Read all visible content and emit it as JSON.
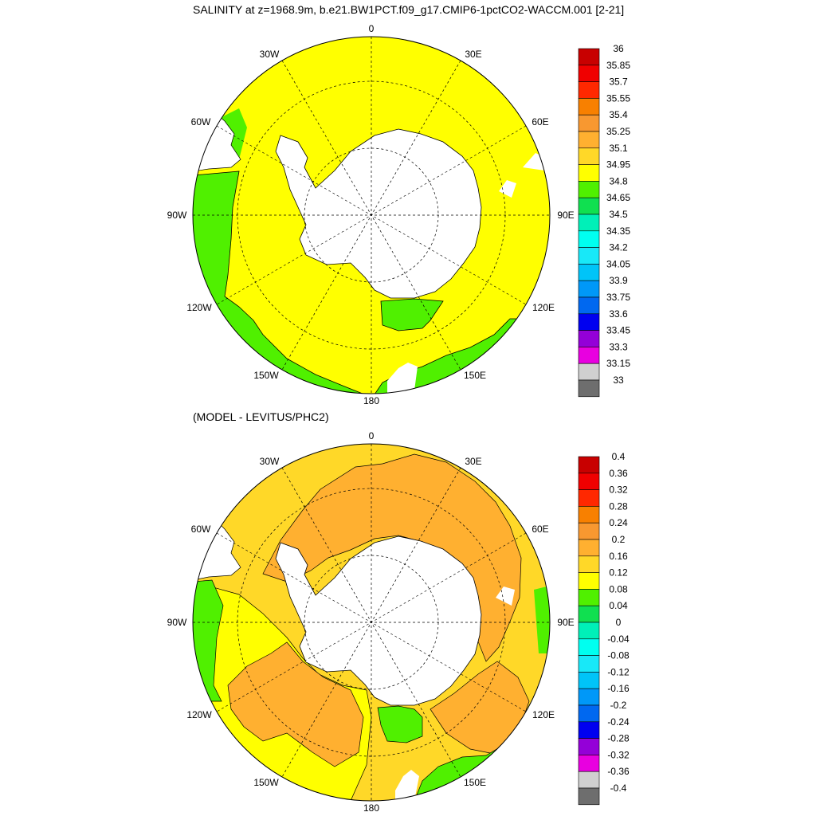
{
  "titles": {
    "top": "SALINITY at z=1968.9m, b.e21.BW1PCT.f09_g17.CMIP6-1pctCO2-WACCM.001 [2-21]",
    "bottom": "(MODEL - LEVITUS/PHC2)"
  },
  "map_labels": [
    "0",
    "30E",
    "60E",
    "90E",
    "120E",
    "150E",
    "180",
    "150W",
    "120W",
    "90W",
    "60W",
    "30W"
  ],
  "colors": {
    "palette": [
      "#6e6e6e",
      "#d0d0d0",
      "#e800e0",
      "#9400d8",
      "#0000f0",
      "#0068f0",
      "#0098f8",
      "#00c4f8",
      "#18e8f8",
      "#00fff0",
      "#00f0b8",
      "#10e050",
      "#50f000",
      "#ffff00",
      "#ffd828",
      "#ffb030",
      "#f89830",
      "#f88000",
      "#ff2800",
      "#f00000",
      "#c80000"
    ],
    "land": "#ffffff",
    "ocean_top": "#ffff00",
    "ocean_bottom": "#ffb030"
  },
  "colorbars": {
    "top": [
      "36",
      "35.85",
      "35.7",
      "35.55",
      "35.4",
      "35.25",
      "35.1",
      "34.95",
      "34.8",
      "34.65",
      "34.5",
      "34.35",
      "34.2",
      "34.05",
      "33.9",
      "33.75",
      "33.6",
      "33.45",
      "33.3",
      "33.15",
      "33"
    ],
    "bottom": [
      "0.4",
      "0.36",
      "0.32",
      "0.28",
      "0.24",
      "0.2",
      "0.16",
      "0.12",
      "0.08",
      "0.04",
      "0",
      "-0.04",
      "-0.08",
      "-0.12",
      "-0.16",
      "-0.2",
      "-0.24",
      "-0.28",
      "-0.32",
      "-0.36",
      "-0.4"
    ]
  }
}
